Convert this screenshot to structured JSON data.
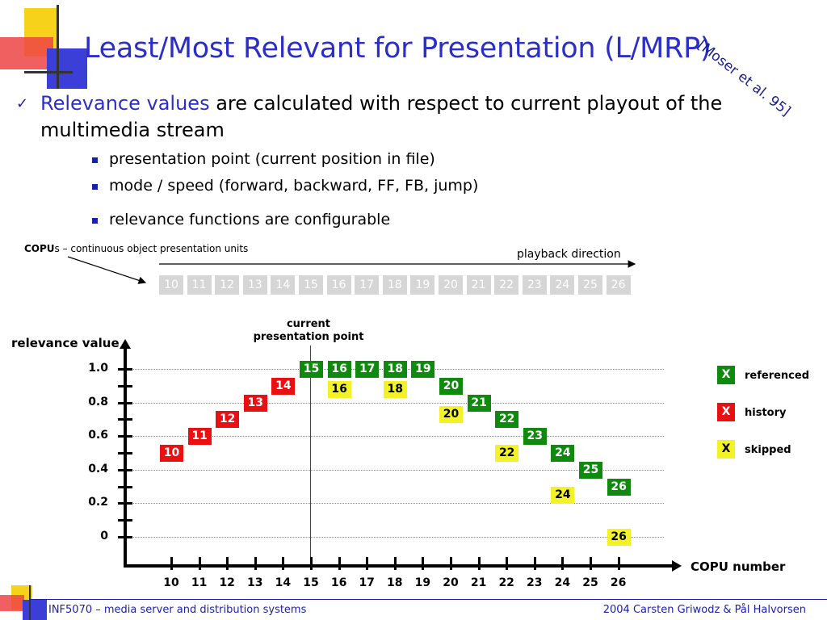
{
  "slide": {
    "title": "Least/Most Relevant for Presentation (L/MRP)",
    "reference": "[Moser et al. 95]",
    "bullet": {
      "highlight": "Relevance values",
      "rest_line1": " are calculated with respect to current playout of the",
      "rest_line2": "multimedia stream"
    },
    "sub_bullets": [
      "presentation point (current position in file)",
      "mode / speed (forward, backward, FF, FB, jump)",
      "relevance functions are configurable"
    ],
    "copu_note": {
      "bold": "COPU",
      "rest": "s – continuous object presentation units"
    },
    "playback_direction": "playback direction",
    "strip_units": [
      "10",
      "11",
      "12",
      "13",
      "14",
      "15",
      "16",
      "17",
      "18",
      "19",
      "20",
      "21",
      "22",
      "23",
      "24",
      "25",
      "26"
    ],
    "current_point_label": [
      "current",
      "presentation point"
    ],
    "footer": {
      "left": "INF5070 – media server and distribution systems",
      "right": "2004  Carsten Griwodz & Pål Halvorsen"
    }
  },
  "chart_data": {
    "type": "scatter",
    "ylabel": "relevance value",
    "xlabel": "COPU number",
    "y_ticks": [
      "1.0",
      "0.8",
      "0.6",
      "0.4",
      "0.2",
      "0"
    ],
    "x_ticks": [
      "10",
      "11",
      "12",
      "13",
      "14",
      "15",
      "16",
      "17",
      "18",
      "19",
      "20",
      "21",
      "22",
      "23",
      "24",
      "25",
      "26"
    ],
    "ylim": [
      0,
      1.0
    ],
    "current_presentation_point": 15,
    "legend": [
      {
        "symbol": "X",
        "label": "referenced",
        "color": "#0f8a0f"
      },
      {
        "symbol": "X",
        "label": "history",
        "color": "#e81010"
      },
      {
        "symbol": "X",
        "label": "skipped",
        "color": "#f2f226"
      }
    ],
    "series": [
      {
        "name": "referenced",
        "color": "#0f8a0f",
        "points": [
          [
            15,
            1.0
          ],
          [
            16,
            1.0
          ],
          [
            17,
            1.0
          ],
          [
            18,
            1.0
          ],
          [
            19,
            1.0
          ],
          [
            20,
            0.9
          ],
          [
            21,
            0.8
          ],
          [
            22,
            0.7
          ],
          [
            23,
            0.6
          ],
          [
            24,
            0.5
          ],
          [
            25,
            0.4
          ],
          [
            26,
            0.3
          ]
        ]
      },
      {
        "name": "history",
        "color": "#e81010",
        "points": [
          [
            10,
            0.5
          ],
          [
            11,
            0.6
          ],
          [
            12,
            0.7
          ],
          [
            13,
            0.8
          ],
          [
            14,
            0.9
          ]
        ]
      },
      {
        "name": "skipped",
        "color": "#f2f226",
        "points": [
          [
            16,
            0.88
          ],
          [
            18,
            0.88
          ],
          [
            20,
            0.73
          ],
          [
            22,
            0.5
          ],
          [
            24,
            0.25
          ],
          [
            26,
            0.0
          ]
        ]
      }
    ]
  }
}
